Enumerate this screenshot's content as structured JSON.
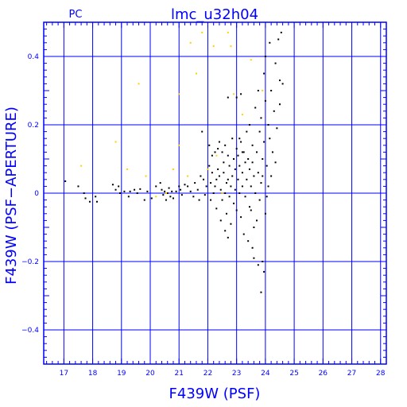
{
  "chart_data": {
    "type": "scatter",
    "title": "lmc_u32h04",
    "corner_label": "PC",
    "xlabel": "F439W (PSF)",
    "ylabel": "F439W (PSF−APERTURE)",
    "xlim": [
      16.3,
      28.2
    ],
    "ylim": [
      -0.5,
      0.5
    ],
    "grid": true,
    "x_ticks": [
      "17",
      "18",
      "19",
      "20",
      "21",
      "22",
      "23",
      "24",
      "25",
      "26",
      "27",
      "28"
    ],
    "y_ticks": [
      "0.4",
      "0.2",
      "0",
      "−0.2",
      "−0.4"
    ],
    "colors": {
      "axes": "#0000ff",
      "grid": "#0000ff",
      "points": "#000000",
      "highlight": "#ffd000"
    },
    "series": [
      {
        "color": "#000000",
        "points": [
          [
            17.05,
            0.035
          ],
          [
            17.5,
            0.02
          ],
          [
            17.7,
            0.0
          ],
          [
            17.75,
            -0.015
          ],
          [
            17.9,
            -0.025
          ],
          [
            18.1,
            -0.01
          ],
          [
            18.15,
            -0.025
          ],
          [
            18.7,
            0.025
          ],
          [
            18.8,
            0.01
          ],
          [
            18.9,
            0.02
          ],
          [
            18.95,
            0.0
          ],
          [
            19.1,
            0.005
          ],
          [
            19.25,
            -0.01
          ],
          [
            19.3,
            0.005
          ],
          [
            19.45,
            0.01
          ],
          [
            19.55,
            0.0
          ],
          [
            19.65,
            0.012
          ],
          [
            19.8,
            -0.02
          ],
          [
            19.9,
            0.005
          ],
          [
            20.05,
            -0.015
          ],
          [
            20.2,
            0.02
          ],
          [
            20.35,
            0.03
          ],
          [
            20.4,
            0.01
          ],
          [
            20.45,
            -0.005
          ],
          [
            20.5,
            0.005
          ],
          [
            20.55,
            -0.02
          ],
          [
            20.6,
            0.0
          ],
          [
            20.65,
            0.015
          ],
          [
            20.7,
            -0.01
          ],
          [
            20.75,
            0.005
          ],
          [
            20.8,
            -0.015
          ],
          [
            20.9,
            0.005
          ],
          [
            21.0,
            0.02
          ],
          [
            21.05,
            0.01
          ],
          [
            21.1,
            -0.005
          ],
          [
            21.2,
            0.025
          ],
          [
            21.3,
            0.02
          ],
          [
            21.4,
            0.005
          ],
          [
            21.5,
            -0.01
          ],
          [
            21.55,
            0.03
          ],
          [
            21.65,
            0.01
          ],
          [
            21.7,
            -0.02
          ],
          [
            21.75,
            0.05
          ],
          [
            21.8,
            0.18
          ],
          [
            21.85,
            0.04
          ],
          [
            21.9,
            -0.005
          ],
          [
            21.95,
            0.02
          ],
          [
            22.05,
            0.14
          ],
          [
            22.05,
            0.08
          ],
          [
            22.1,
            0.03
          ],
          [
            22.1,
            -0.02
          ],
          [
            22.15,
            0.11
          ],
          [
            22.15,
            0.06
          ],
          [
            22.2,
            0.0
          ],
          [
            22.25,
            0.12
          ],
          [
            22.25,
            0.02
          ],
          [
            22.3,
            0.04
          ],
          [
            22.3,
            -0.045
          ],
          [
            22.35,
            0.13
          ],
          [
            22.35,
            0.07
          ],
          [
            22.4,
            0.15
          ],
          [
            22.4,
            0.05
          ],
          [
            22.45,
            0.01
          ],
          [
            22.45,
            -0.08
          ],
          [
            22.5,
            0.12
          ],
          [
            22.5,
            -0.02
          ],
          [
            22.55,
            0.06
          ],
          [
            22.55,
            0.09
          ],
          [
            22.6,
            0.14
          ],
          [
            22.6,
            0.0
          ],
          [
            22.65,
            0.03
          ],
          [
            22.65,
            -0.06
          ],
          [
            22.7,
            0.11
          ],
          [
            22.7,
            0.04
          ],
          [
            22.75,
            0.08
          ],
          [
            22.75,
            -0.01
          ],
          [
            22.8,
            0.02
          ],
          [
            22.8,
            -0.09
          ],
          [
            22.85,
            0.16
          ],
          [
            22.85,
            0.05
          ],
          [
            22.9,
            0.1
          ],
          [
            22.9,
            -0.03
          ],
          [
            22.95,
            0.07
          ],
          [
            22.95,
            0.01
          ],
          [
            23.0,
            0.13
          ],
          [
            23.0,
            -0.05
          ],
          [
            23.0,
            0.28
          ],
          [
            23.05,
            0.04
          ],
          [
            23.05,
            0.11
          ],
          [
            23.1,
            0.0
          ],
          [
            23.1,
            0.08
          ],
          [
            23.15,
            0.15
          ],
          [
            23.15,
            -0.07
          ],
          [
            23.2,
            0.06
          ],
          [
            23.2,
            0.02
          ],
          [
            23.25,
            0.12
          ],
          [
            23.25,
            -0.12
          ],
          [
            23.3,
            0.09
          ],
          [
            23.3,
            -0.01
          ],
          [
            23.35,
            0.18
          ],
          [
            23.35,
            0.04
          ],
          [
            23.4,
            0.1
          ],
          [
            23.4,
            -0.14
          ],
          [
            23.45,
            0.07
          ],
          [
            23.45,
            0.2
          ],
          [
            23.5,
            0.02
          ],
          [
            23.5,
            -0.05
          ],
          [
            23.55,
            0.14
          ],
          [
            23.55,
            0.09
          ],
          [
            23.6,
            -0.1
          ],
          [
            23.6,
            0.05
          ],
          [
            23.65,
            0.25
          ],
          [
            23.65,
            0.0
          ],
          [
            23.7,
            0.12
          ],
          [
            23.7,
            -0.08
          ],
          [
            23.75,
            0.3
          ],
          [
            23.75,
            0.06
          ],
          [
            23.8,
            0.18
          ],
          [
            23.8,
            -0.02
          ],
          [
            23.85,
            0.22
          ],
          [
            23.85,
            0.03
          ],
          [
            23.9,
            0.1
          ],
          [
            23.9,
            -0.2
          ],
          [
            23.95,
            0.35
          ],
          [
            23.95,
            0.15
          ],
          [
            24.0,
            0.27
          ],
          [
            24.0,
            -0.06
          ],
          [
            24.0,
            0.4
          ],
          [
            24.05,
            0.08
          ],
          [
            24.1,
            0.2
          ],
          [
            24.1,
            0.02
          ],
          [
            24.15,
            0.44
          ],
          [
            24.15,
            0.16
          ],
          [
            24.2,
            0.3
          ],
          [
            24.2,
            0.05
          ],
          [
            24.25,
            0.12
          ],
          [
            24.3,
            0.24
          ],
          [
            24.35,
            0.38
          ],
          [
            24.35,
            0.09
          ],
          [
            24.4,
            0.19
          ],
          [
            24.45,
            0.45
          ],
          [
            24.5,
            0.33
          ],
          [
            24.5,
            0.26
          ],
          [
            24.55,
            0.47
          ],
          [
            24.6,
            0.32
          ],
          [
            23.1,
            0.16
          ],
          [
            23.2,
            0.12
          ],
          [
            23.55,
            -0.16
          ],
          [
            23.6,
            -0.19
          ],
          [
            23.75,
            -0.21
          ],
          [
            23.85,
            -0.29
          ],
          [
            23.95,
            -0.23
          ],
          [
            22.6,
            -0.11
          ],
          [
            22.7,
            -0.13
          ],
          [
            23.15,
            0.29
          ],
          [
            22.7,
            0.28
          ],
          [
            23.45,
            -0.04
          ],
          [
            23.9,
            0.05
          ],
          [
            24.05,
            -0.01
          ]
        ]
      },
      {
        "color": "#ffd000",
        "points": [
          [
            17.6,
            0.08
          ],
          [
            18.8,
            0.15
          ],
          [
            19.6,
            0.32
          ],
          [
            19.2,
            0.07
          ],
          [
            20.8,
            0.07
          ],
          [
            21.0,
            0.14
          ],
          [
            21.0,
            0.29
          ],
          [
            21.4,
            0.44
          ],
          [
            21.6,
            0.35
          ],
          [
            21.8,
            0.47
          ],
          [
            22.2,
            0.43
          ],
          [
            22.3,
            0.11
          ],
          [
            22.7,
            0.47
          ],
          [
            22.5,
            0.0
          ],
          [
            22.9,
            0.29
          ],
          [
            23.2,
            0.23
          ],
          [
            23.5,
            0.39
          ],
          [
            23.9,
            0.3
          ],
          [
            20.55,
            0.0
          ],
          [
            22.0,
            0.07
          ],
          [
            20.2,
            -0.01
          ],
          [
            21.3,
            0.05
          ],
          [
            19.85,
            0.05
          ],
          [
            22.8,
            0.43
          ]
        ]
      }
    ]
  }
}
